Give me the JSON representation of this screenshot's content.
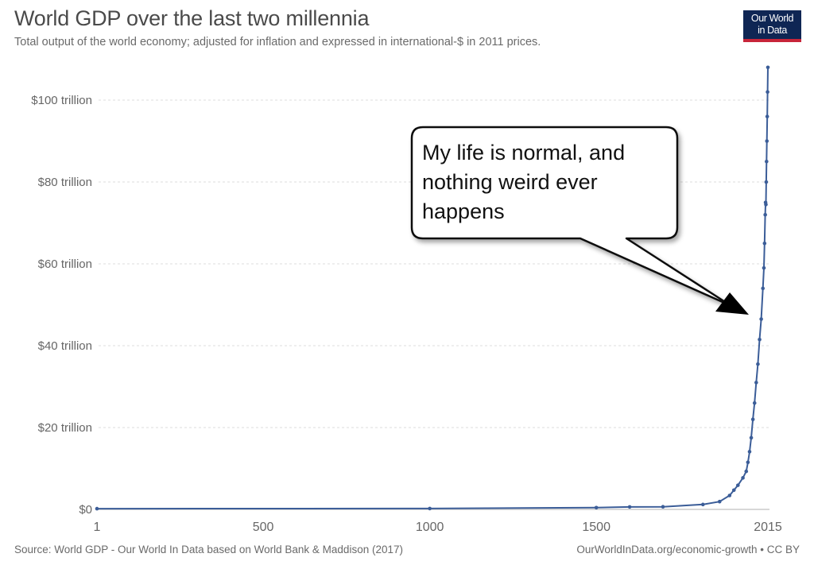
{
  "header": {
    "title": "World GDP over the last two millennia",
    "subtitle": "Total output of the world economy; adjusted for inflation and expressed in international-$ in 2011 prices.",
    "logo_line1": "Our World",
    "logo_line2": "in Data"
  },
  "annotation": {
    "line1": "My life is normal, and",
    "line2": "nothing weird ever",
    "line3": "happens"
  },
  "footer": {
    "source": "Source: World GDP - Our World In Data based on World Bank & Maddison (2017)",
    "link": "OurWorldInData.org/economic-growth • CC BY"
  },
  "colors": {
    "series": "#3b5d98",
    "gridline": "#dddddd",
    "logo_bg": "#0f2654",
    "logo_accent": "#c8253a"
  },
  "chart_data": {
    "type": "line",
    "title": "World GDP over the last two millennia",
    "subtitle": "Total output of the world economy; adjusted for inflation and expressed in international-$ in 2011 prices.",
    "xlabel": "",
    "ylabel": "",
    "xlim": [
      1,
      2015
    ],
    "ylim": [
      0,
      108
    ],
    "y_unit": "trillion international-$ (2011 prices)",
    "grid": true,
    "legend": "none",
    "x_tick_labels": [
      "1",
      "500",
      "1000",
      "1500",
      "2015"
    ],
    "x_ticks": [
      1,
      500,
      1000,
      1500,
      2015
    ],
    "y_tick_labels": [
      "$0",
      "$20 trillion",
      "$40 trillion",
      "$60 trillion",
      "$80 trillion",
      "$100 trillion"
    ],
    "y_ticks": [
      0,
      20,
      40,
      60,
      80,
      100
    ],
    "series": [
      {
        "name": "World GDP",
        "x": [
          1,
          1000,
          1500,
          1600,
          1700,
          1820,
          1870,
          1900,
          1913,
          1925,
          1940,
          1950,
          1955,
          1960,
          1965,
          1970,
          1975,
          1980,
          1985,
          1990,
          1995,
          2000,
          2003,
          2005,
          2007,
          2008,
          2009,
          2010,
          2011,
          2012,
          2013,
          2014,
          2015
        ],
        "values": [
          0.18,
          0.21,
          0.43,
          0.6,
          0.64,
          1.2,
          1.9,
          3.4,
          4.7,
          5.9,
          7.7,
          9.3,
          11.5,
          14.1,
          17.5,
          22.0,
          26.0,
          31.0,
          35.5,
          41.5,
          46.5,
          54.0,
          59.0,
          65.0,
          72.0,
          75.0,
          74.5,
          80.0,
          85.0,
          90.0,
          96.0,
          102.0,
          108.0
        ]
      }
    ],
    "annotations": [
      {
        "text": "My life is normal, and nothing weird ever happens",
        "type": "speech-bubble",
        "points_to_year": 2000
      }
    ]
  }
}
